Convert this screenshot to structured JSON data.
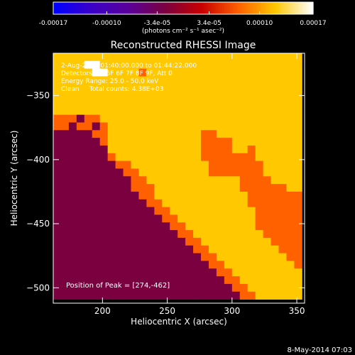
{
  "chart_data": {
    "type": "heatmap",
    "title": "Reconstructed RHESSI Image",
    "xlabel": "Heliocentric X (arcsec)",
    "ylabel": "Heliocentric Y (arcsec)",
    "xlim": [
      162,
      356
    ],
    "ylim": [
      -512,
      -317
    ],
    "xticks": [
      200,
      250,
      300,
      350
    ],
    "yticks": [
      -350,
      -400,
      -450,
      -500
    ],
    "colorbar": {
      "min": -0.00017,
      "max": 0.00017,
      "tick_values": [
        -0.00017,
        -0.0001,
        -3.4e-05,
        3.4e-05,
        0.0001,
        0.00017
      ],
      "tick_labels": [
        "-0.00017",
        "-0.00010",
        "-3.4e-05",
        "3.4e-05",
        "0.00010",
        "0.00017"
      ],
      "unit_label": "(photons cm⁻² s⁻¹ asec⁻²)"
    },
    "annotations": {
      "line1": "2-Aug-2012 01:40:00.000 to 01:44:22.000",
      "line2": "Detectors: 3F 5F 6F 7F 8F 9F, Att 0",
      "line3": "Energy Range: 25.0 - 50.0 keV",
      "line4": "Clean     Total counts: 4.38E+03",
      "peak": "Position of Peak = [274,-462]"
    },
    "grid": false,
    "colormap": [
      "#0000ff",
      "#3a00c8",
      "#5a009a",
      "#7a0040",
      "#c80000",
      "#ff6000",
      "#ffc800",
      "#ffffff"
    ],
    "cell_arcsec": 6,
    "grid_x0": 162,
    "grid_y_top": -317,
    "grid_rows": [
      "66666666666666666666666666666666",
      "66667766666666666666666666666666",
      "66666776666566666666666666666666",
      "66666666666666666666666666666666",
      "66666666666666666666666666666666",
      "66666666666666666666666666666666",
      "66666666666666666666666666666666",
      "66666666666666666666666666666666",
      "55535566666666666666666666666666",
      "55355356666666666666666666666666",
      "33333556666666666665566666666666",
      "33333356666666666665555666666666",
      "33333336666666666665555665666666",
      "33333335666666666665555555666666",
      "33333333556666666666555555566666",
      "33333333355666666666555555566666",
      "33333333335566666666666655556666",
      "33333333335556666666666655555566",
      "33333333333556666666666665555555",
      "33333333333355666666666665555555",
      "33333333333335566666666666555555",
      "33333333333333556666666666555555",
      "33333333333333355666666666555555",
      "33333333333333335566666666655555",
      "33333333333333333556666666665555",
      "33333333333333333355666666666555",
      "33333333333333333335566666666655",
      "33333333333333333333556666666665",
      "33333333333333333333355666666666",
      "33333333333333333333335566666666",
      "33333333333333333333333556666666",
      "33333333333333333333333355666666"
    ],
    "footer_date": "8-May-2014 07:03"
  }
}
